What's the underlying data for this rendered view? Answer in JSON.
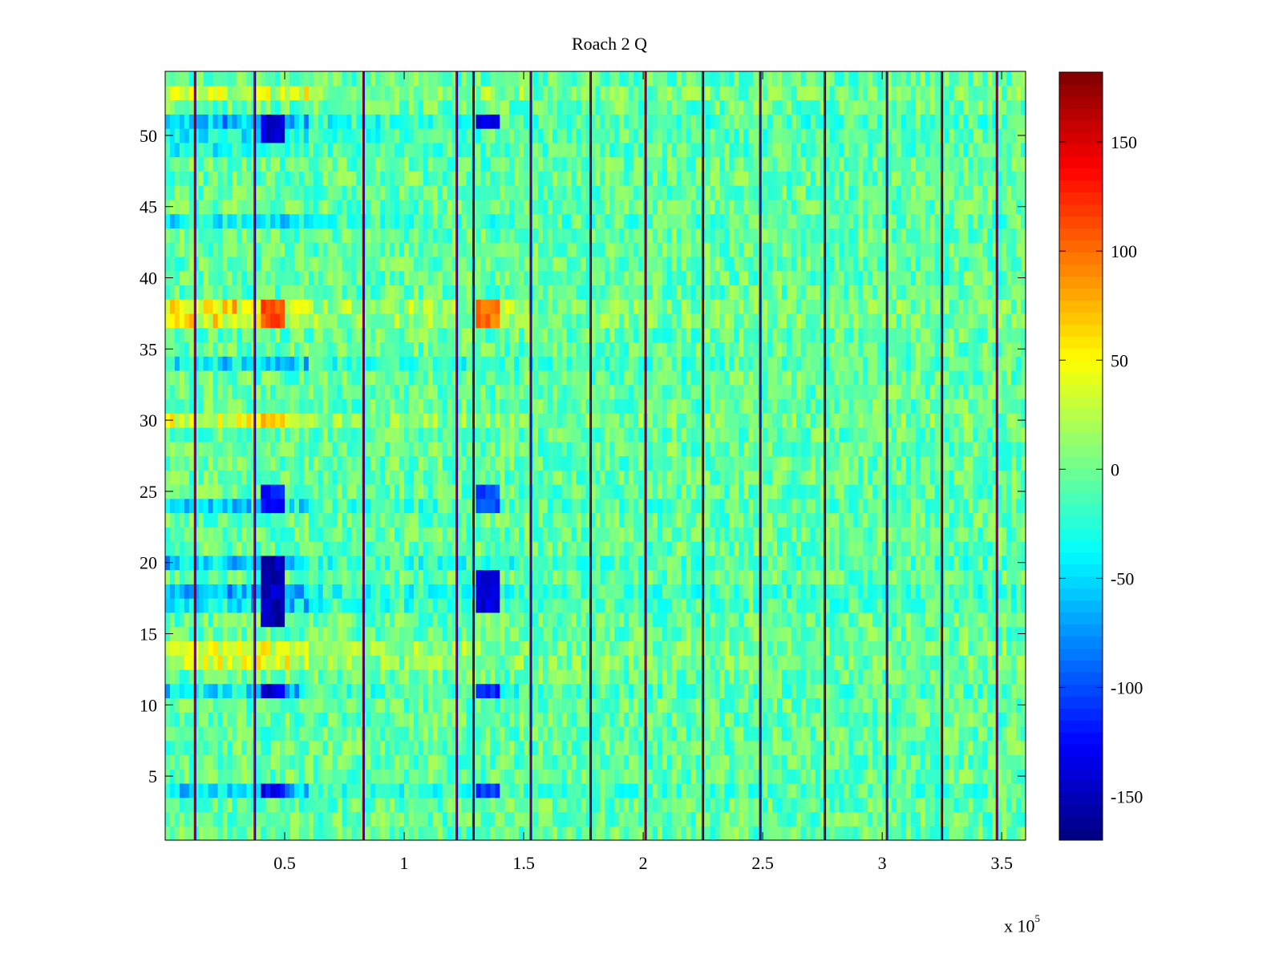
{
  "chart_data": {
    "type": "heatmap",
    "title": "Roach 2 Q",
    "x_exponent_label": {
      "base": "x 10",
      "exponent": "5"
    },
    "xlim": [
      0.0,
      3.6
    ],
    "ylim": [
      0.5,
      54.5
    ],
    "x_ticks": [
      0.5,
      1,
      1.5,
      2,
      2.5,
      3,
      3.5
    ],
    "x_tick_labels": [
      "0.5",
      "1",
      "1.5",
      "2",
      "2.5",
      "3",
      "3.5"
    ],
    "y_ticks": [
      5,
      10,
      15,
      20,
      25,
      30,
      35,
      40,
      45,
      50
    ],
    "y_tick_labels": [
      "5",
      "10",
      "15",
      "20",
      "25",
      "30",
      "35",
      "40",
      "45",
      "50"
    ],
    "n_rows": 54,
    "colormap": "jet",
    "colorbar": {
      "clim": [
        -170,
        182
      ],
      "ticks": [
        150,
        100,
        50,
        0,
        -50,
        -100,
        -150
      ],
      "tick_labels": [
        "150",
        "100",
        "50",
        "0",
        "-50",
        "-100",
        "-150"
      ]
    },
    "background_value": -5,
    "vertical_spike_lines_x": [
      0.125,
      0.375,
      0.83,
      1.22,
      1.29,
      1.53,
      1.78,
      2.01,
      2.25,
      2.49,
      2.76,
      3.02,
      3.25,
      3.48
    ],
    "row_bias": [
      {
        "row": 53,
        "value": 40
      },
      {
        "row": 51,
        "value": -60
      },
      {
        "row": 50,
        "value": -30
      },
      {
        "row": 49,
        "value": -25
      },
      {
        "row": 44,
        "value": -35
      },
      {
        "row": 38,
        "value": 60
      },
      {
        "row": 37,
        "value": 55
      },
      {
        "row": 34,
        "value": -45
      },
      {
        "row": 30,
        "value": 50
      },
      {
        "row": 24,
        "value": -40
      },
      {
        "row": 20,
        "value": -50
      },
      {
        "row": 18,
        "value": -70
      },
      {
        "row": 17,
        "value": -50
      },
      {
        "row": 14,
        "value": 50
      },
      {
        "row": 13,
        "value": 40
      },
      {
        "row": 11,
        "value": -45
      },
      {
        "row": 4,
        "value": -50
      }
    ],
    "hot_spots": [
      {
        "x_range": [
          0.4,
          0.5
        ],
        "rows": [
          50,
          51
        ],
        "value": -140
      },
      {
        "x_range": [
          0.4,
          0.5
        ],
        "rows": [
          37,
          38
        ],
        "value": 110
      },
      {
        "x_range": [
          0.4,
          0.5
        ],
        "rows": [
          30
        ],
        "value": 70
      },
      {
        "x_range": [
          0.4,
          0.5
        ],
        "rows": [
          24,
          25
        ],
        "value": -120
      },
      {
        "x_range": [
          0.4,
          0.5
        ],
        "rows": [
          16,
          17,
          18,
          19,
          20
        ],
        "value": -150
      },
      {
        "x_range": [
          0.4,
          0.5
        ],
        "rows": [
          11
        ],
        "value": -140
      },
      {
        "x_range": [
          0.4,
          0.5
        ],
        "rows": [
          4
        ],
        "value": -130
      },
      {
        "x_range": [
          1.31,
          1.4
        ],
        "rows": [
          51
        ],
        "value": -130
      },
      {
        "x_range": [
          1.31,
          1.4
        ],
        "rows": [
          37,
          38
        ],
        "value": 100
      },
      {
        "x_range": [
          1.31,
          1.4
        ],
        "rows": [
          24,
          25
        ],
        "value": -100
      },
      {
        "x_range": [
          1.31,
          1.4
        ],
        "rows": [
          17,
          18,
          19
        ],
        "value": -140
      },
      {
        "x_range": [
          1.31,
          1.4
        ],
        "rows": [
          11
        ],
        "value": -110
      },
      {
        "x_range": [
          1.31,
          1.4
        ],
        "rows": [
          4
        ],
        "value": -110
      }
    ],
    "row_bias_x_extent": 0.6
  }
}
